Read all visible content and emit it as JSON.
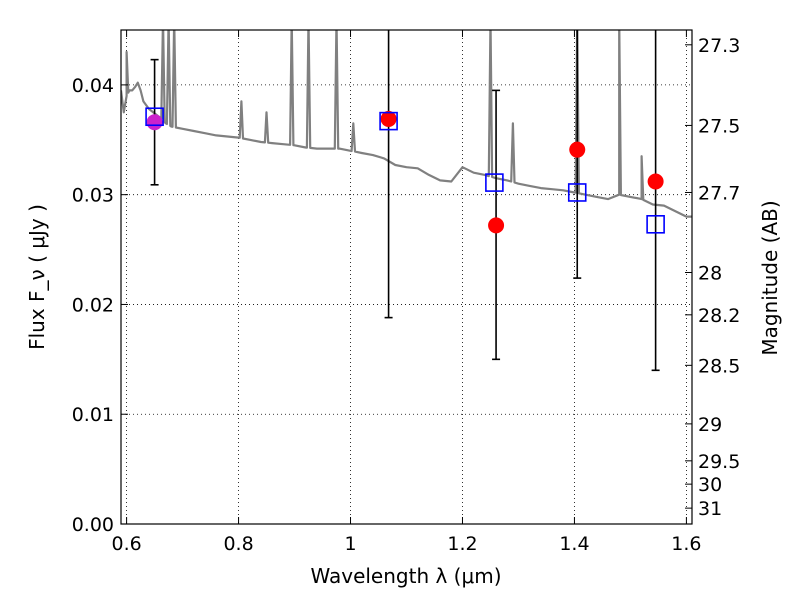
{
  "chart_data": {
    "type": "scatter",
    "xlabel": "Wavelength  λ (μm)",
    "ylabel_left": "Flux  F_ν  ( μJy )",
    "ylabel_right": "Magnitude (AB)",
    "xlim": [
      0.59,
      1.61
    ],
    "ylim": [
      0.0,
      0.045
    ],
    "grid": true,
    "x_ticks": [
      0.6,
      0.8,
      1.0,
      1.2,
      1.4,
      1.6
    ],
    "x_tick_labels": [
      "0.6",
      "0.8",
      "1",
      "1.2",
      "1.4",
      "1.6"
    ],
    "y_ticks": [
      0.0,
      0.01,
      0.02,
      0.03,
      0.04
    ],
    "y_tick_labels": [
      "0.00",
      "0.01",
      "0.02",
      "0.03",
      "0.04"
    ],
    "right_ticks": [
      {
        "value": 27.3,
        "label": "27.3"
      },
      {
        "value": 27.5,
        "label": "27.5"
      },
      {
        "value": 27.7,
        "label": "27.7"
      },
      {
        "value": 28,
        "label": "28"
      },
      {
        "value": 28.2,
        "label": "28.2"
      },
      {
        "value": 28.5,
        "label": "28.5"
      },
      {
        "value": 29,
        "label": "29"
      },
      {
        "value": 29.5,
        "label": "29.5"
      },
      {
        "value": 30,
        "label": "30"
      },
      {
        "value": 31,
        "label": "31"
      }
    ],
    "observed": [
      {
        "x": 0.65,
        "y": 0.0366,
        "yerr_low": 0.0309,
        "yerr_high": 0.0423
      },
      {
        "x": 1.068,
        "y": 0.0369,
        "yerr_low": 0.0188,
        "yerr_high": 0.0462
      },
      {
        "x": 1.26,
        "y": 0.0272,
        "yerr_low": 0.015,
        "yerr_high": 0.0395
      },
      {
        "x": 1.405,
        "y": 0.0341,
        "yerr_low": 0.0224,
        "yerr_high": 0.047
      },
      {
        "x": 1.545,
        "y": 0.0312,
        "yerr_low": 0.014,
        "yerr_high": 0.048
      }
    ],
    "model_points": [
      {
        "x": 0.65,
        "y": 0.0371
      },
      {
        "x": 1.068,
        "y": 0.0367
      },
      {
        "x": 1.257,
        "y": 0.0311
      },
      {
        "x": 1.405,
        "y": 0.0302
      },
      {
        "x": 1.545,
        "y": 0.0273
      }
    ],
    "spectrum": [
      [
        0.59,
        0.0395
      ],
      [
        0.595,
        0.0375
      ],
      [
        0.6,
        0.039
      ],
      [
        0.605,
        0.0395
      ],
      [
        0.61,
        0.0395
      ],
      [
        0.615,
        0.0398
      ],
      [
        0.62,
        0.0402
      ],
      [
        0.625,
        0.0395
      ],
      [
        0.63,
        0.0385
      ],
      [
        0.64,
        0.0378
      ],
      [
        0.65,
        0.0374
      ],
      [
        0.66,
        0.037
      ],
      [
        0.67,
        0.0365
      ],
      [
        0.68,
        0.0362
      ],
      [
        0.7,
        0.036
      ],
      [
        0.72,
        0.0358
      ],
      [
        0.74,
        0.0356
      ],
      [
        0.76,
        0.0354
      ],
      [
        0.78,
        0.0353
      ],
      [
        0.8,
        0.0352
      ],
      [
        0.82,
        0.035
      ],
      [
        0.84,
        0.0348
      ],
      [
        0.86,
        0.0347
      ],
      [
        0.88,
        0.0346
      ],
      [
        0.9,
        0.0345
      ],
      [
        0.92,
        0.0343
      ],
      [
        0.94,
        0.0342
      ],
      [
        0.96,
        0.0342
      ],
      [
        0.98,
        0.0342
      ],
      [
        1.0,
        0.034
      ],
      [
        1.02,
        0.0338
      ],
      [
        1.04,
        0.0336
      ],
      [
        1.06,
        0.0333
      ],
      [
        1.08,
        0.0327
      ],
      [
        1.1,
        0.0325
      ],
      [
        1.12,
        0.0324
      ],
      [
        1.14,
        0.0318
      ],
      [
        1.16,
        0.0313
      ],
      [
        1.18,
        0.0312
      ],
      [
        1.2,
        0.0325
      ],
      [
        1.22,
        0.032
      ],
      [
        1.24,
        0.0318
      ],
      [
        1.26,
        0.0315
      ],
      [
        1.28,
        0.0313
      ],
      [
        1.3,
        0.031
      ],
      [
        1.32,
        0.0308
      ],
      [
        1.34,
        0.0306
      ],
      [
        1.36,
        0.0305
      ],
      [
        1.38,
        0.0304
      ],
      [
        1.4,
        0.0302
      ],
      [
        1.42,
        0.03
      ],
      [
        1.44,
        0.0298
      ],
      [
        1.46,
        0.0296
      ],
      [
        1.48,
        0.03
      ],
      [
        1.5,
        0.0298
      ],
      [
        1.52,
        0.0296
      ],
      [
        1.54,
        0.0291
      ],
      [
        1.56,
        0.029
      ],
      [
        1.58,
        0.0285
      ],
      [
        1.6,
        0.028
      ],
      [
        1.61,
        0.028
      ]
    ],
    "spectrum_lines": [
      {
        "x": 0.6,
        "peak": 0.043
      },
      {
        "x": 0.665,
        "peak": 0.046
      },
      {
        "x": 0.675,
        "peak": 0.046
      },
      {
        "x": 0.685,
        "peak": 0.046
      },
      {
        "x": 0.805,
        "peak": 0.0385
      },
      {
        "x": 0.85,
        "peak": 0.0375
      },
      {
        "x": 0.895,
        "peak": 0.046
      },
      {
        "x": 0.925,
        "peak": 0.046
      },
      {
        "x": 0.975,
        "peak": 0.046
      },
      {
        "x": 1.005,
        "peak": 0.0365
      },
      {
        "x": 1.25,
        "peak": 0.046
      },
      {
        "x": 1.29,
        "peak": 0.0365
      },
      {
        "x": 1.405,
        "peak": 0.046
      },
      {
        "x": 1.48,
        "peak": 0.046
      },
      {
        "x": 1.52,
        "peak": 0.0335
      }
    ],
    "colors": {
      "spectrum": "#808080",
      "observed": "#ff0000",
      "observed_overlap": "#cc22cc",
      "model": "#0000ff",
      "errorbar": "#000000"
    }
  }
}
